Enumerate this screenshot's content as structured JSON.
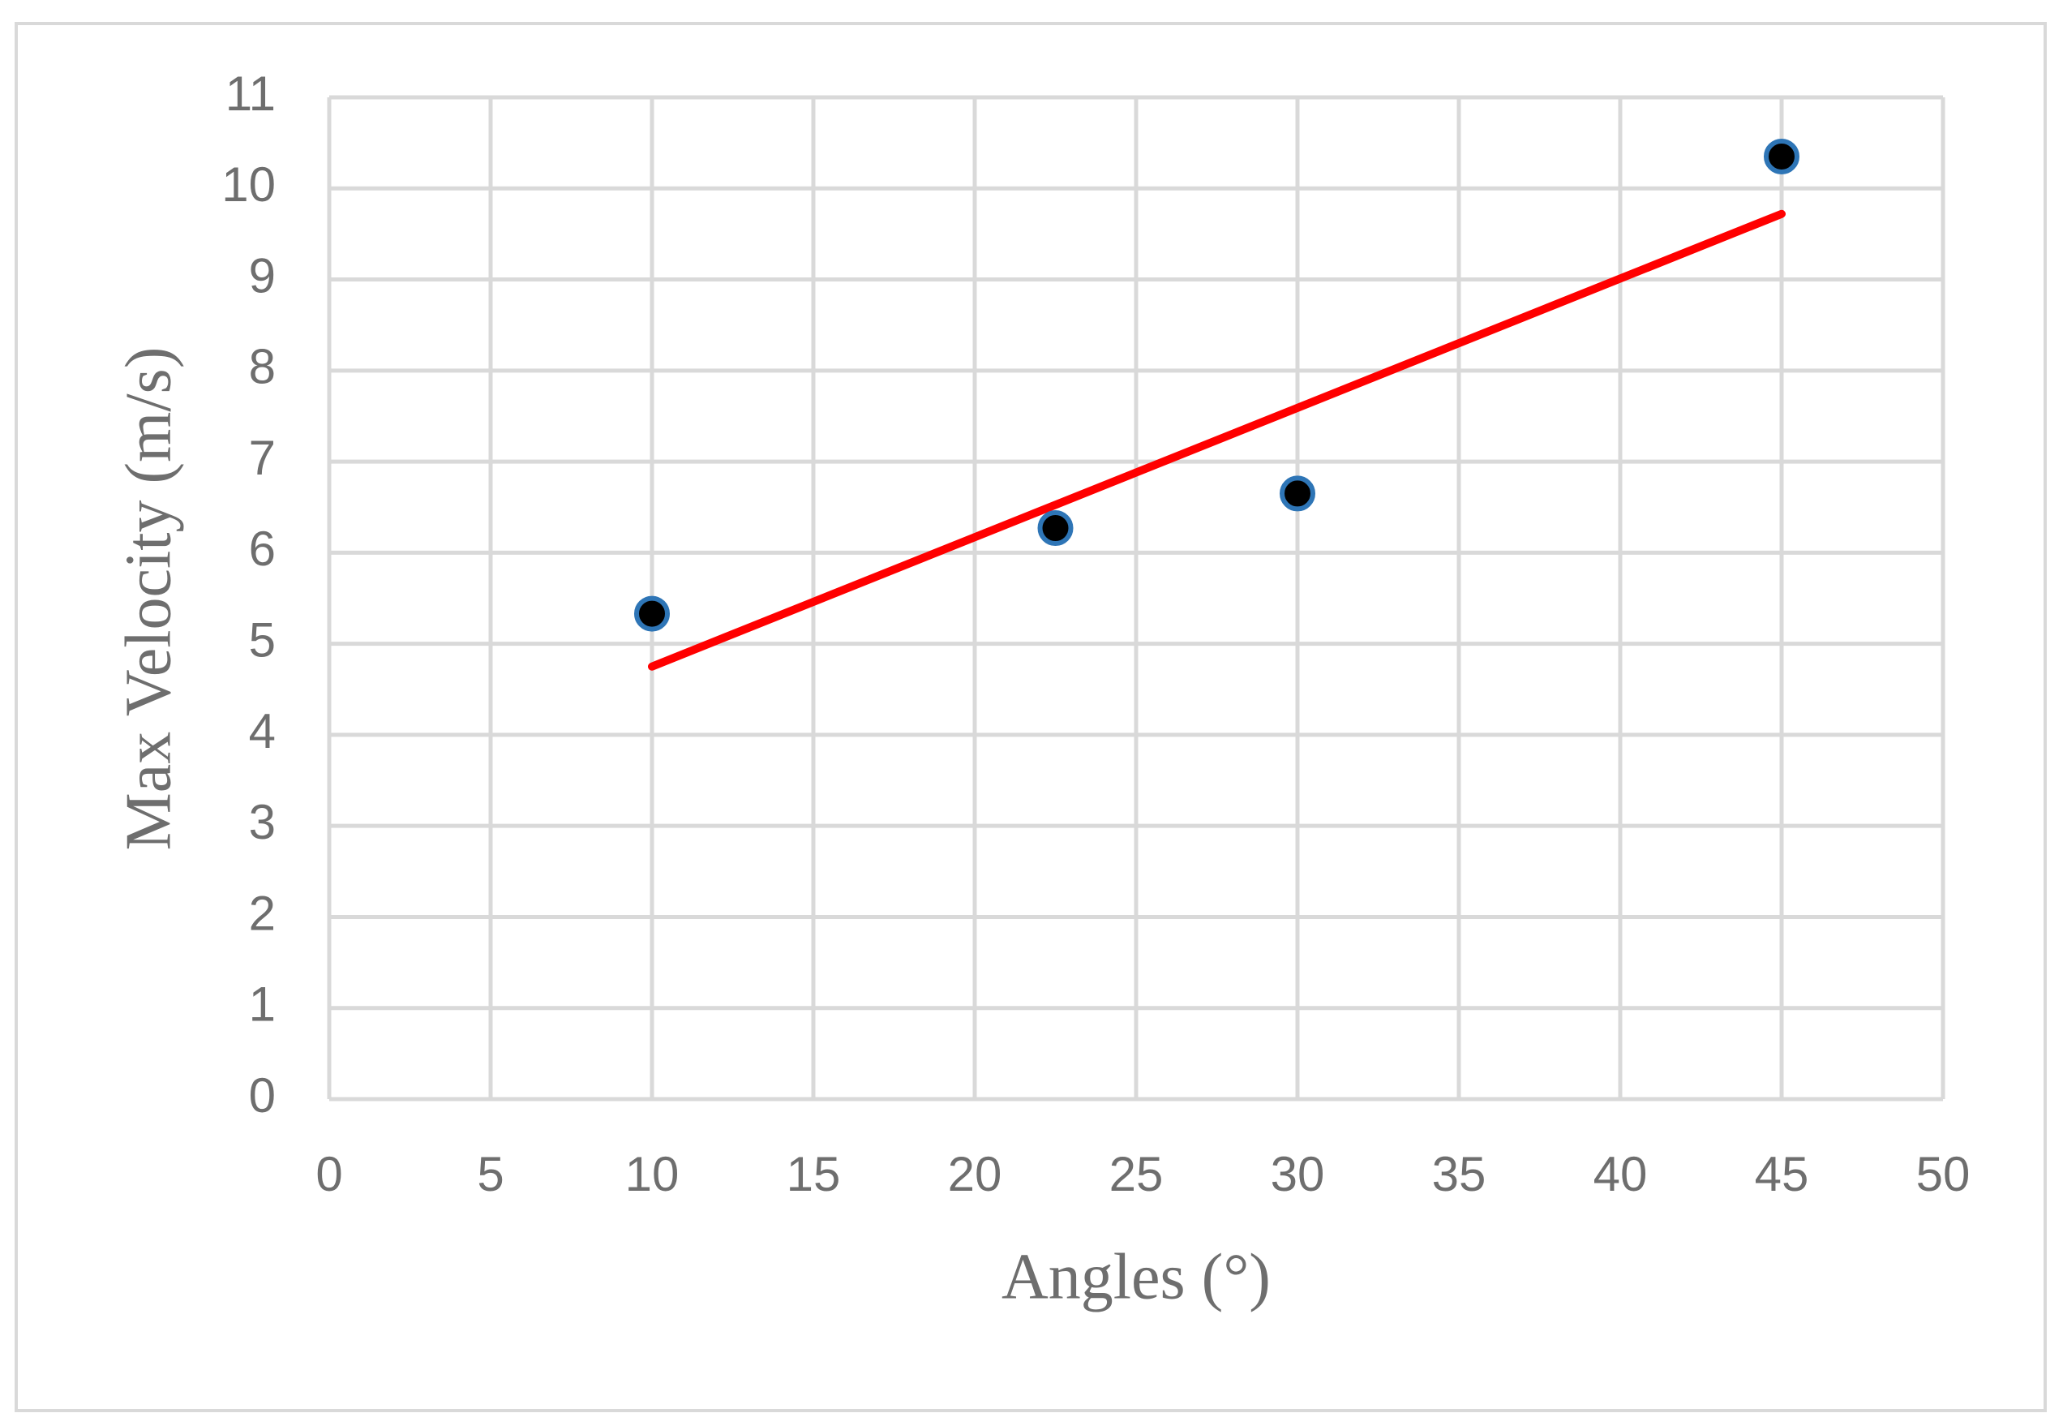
{
  "chart_data": {
    "type": "scatter",
    "x_label": "Angles (°)",
    "y_label": "Max Velocity (m/s)",
    "xlim": [
      0,
      50
    ],
    "ylim": [
      0,
      11
    ],
    "xticks": [
      0,
      5,
      10,
      15,
      20,
      25,
      30,
      35,
      40,
      45,
      50
    ],
    "yticks": [
      0,
      1,
      2,
      3,
      4,
      5,
      6,
      7,
      8,
      9,
      10,
      11
    ],
    "grid": true,
    "series": [
      {
        "x": [
          10,
          22.5,
          30,
          45
        ],
        "values": [
          5.33,
          6.27,
          6.65,
          10.35
        ],
        "color": "#000000",
        "edge_color": "#2e75b6"
      }
    ],
    "trendline": {
      "x": [
        10,
        45
      ],
      "values": [
        4.75,
        9.72
      ],
      "color": "#ff0000"
    }
  }
}
